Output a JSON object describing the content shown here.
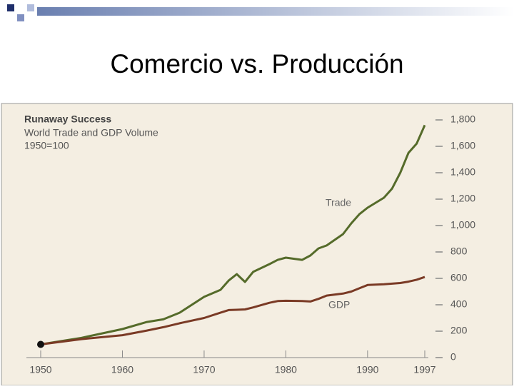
{
  "slide_title": "Comercio vs. Producción",
  "chart_data": {
    "type": "line",
    "title": "Runaway Success",
    "subtitle": "World Trade and GDP Volume",
    "note": "1950=100",
    "x": [
      1950,
      1955,
      1960,
      1963,
      1965,
      1967,
      1970,
      1972,
      1973,
      1974,
      1975,
      1976,
      1978,
      1979,
      1980,
      1982,
      1983,
      1984,
      1985,
      1987,
      1988,
      1989,
      1990,
      1992,
      1993,
      1994,
      1995,
      1996,
      1997
    ],
    "series": [
      {
        "name": "Trade",
        "color": "#556b2a",
        "values": [
          100,
          150,
          216,
          270,
          290,
          340,
          460,
          513,
          583,
          632,
          573,
          649,
          708,
          740,
          757,
          740,
          773,
          827,
          849,
          935,
          1016,
          1086,
          1135,
          1211,
          1280,
          1400,
          1550,
          1620,
          1760
        ]
      },
      {
        "name": "GDP",
        "color": "#7a3a25",
        "values": [
          100,
          140,
          170,
          205,
          230,
          260,
          300,
          340,
          360,
          362,
          365,
          380,
          415,
          428,
          430,
          428,
          425,
          445,
          470,
          485,
          500,
          525,
          550,
          555,
          560,
          565,
          575,
          590,
          610
        ]
      }
    ],
    "xlim": [
      1950,
      1997
    ],
    "xticks": [
      1950,
      1960,
      1970,
      1980,
      1990,
      1997
    ],
    "ylim": [
      0,
      1800
    ],
    "yticks": [
      0,
      200,
      400,
      600,
      800,
      {
        "value": 1000,
        "label": "1,000"
      },
      {
        "value": 1200,
        "label": "1,200"
      },
      {
        "value": 1400,
        "label": "1,400"
      },
      {
        "value": 1600,
        "label": "1,600"
      },
      {
        "value": 1800,
        "label": "1,800"
      }
    ]
  }
}
